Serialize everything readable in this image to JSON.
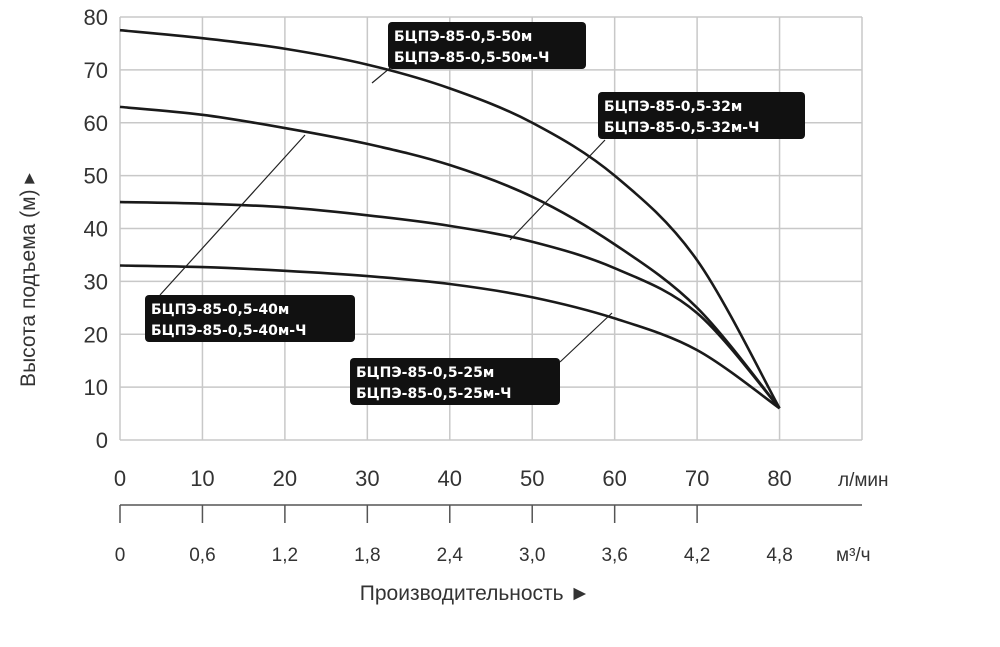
{
  "chart_data": {
    "type": "line",
    "ylabel": "Высота подъема (м) ▸",
    "xlabel": "Производительность ►",
    "x_unit": "л/мин",
    "x2_unit": "м³/ч",
    "xlim": [
      0,
      90
    ],
    "ylim": [
      0,
      80
    ],
    "grid": true,
    "x_ticks": [
      "0",
      "10",
      "20",
      "30",
      "40",
      "50",
      "60",
      "70",
      "80"
    ],
    "x2_ticks": [
      "0",
      "0,6",
      "1,2",
      "1,8",
      "2,4",
      "3,0",
      "3,6",
      "4,2",
      "4,8"
    ],
    "y_ticks": [
      "0",
      "10",
      "20",
      "30",
      "40",
      "50",
      "60",
      "70",
      "80"
    ],
    "x": [
      0,
      10,
      20,
      30,
      40,
      50,
      60,
      70,
      80
    ],
    "series": [
      {
        "name": "БЦПЭ-85-0,5-50м / БЦПЭ-85-0,5-50м-Ч",
        "lines": [
          "БЦПЭ-85-0,5-50м",
          "БЦПЭ-85-0,5-50м-Ч"
        ],
        "values": [
          77.5,
          76,
          74,
          71,
          66.5,
          60,
          50,
          34,
          6
        ]
      },
      {
        "name": "БЦПЭ-85-0,5-40м / БЦПЭ-85-0,5-40м-Ч",
        "lines": [
          "БЦПЭ-85-0,5-40м",
          "БЦПЭ-85-0,5-40м-Ч"
        ],
        "values": [
          63,
          61.5,
          59,
          56,
          52,
          46,
          37,
          25,
          6
        ]
      },
      {
        "name": "БЦПЭ-85-0,5-32м / БЦПЭ-85-0,5-32м-Ч",
        "lines": [
          "БЦПЭ-85-0,5-32м",
          "БЦПЭ-85-0,5-32м-Ч"
        ],
        "values": [
          45,
          44.7,
          44,
          42.5,
          40.5,
          37.5,
          32.5,
          24,
          6
        ]
      },
      {
        "name": "БЦПЭ-85-0,5-25м / БЦПЭ-85-0,5-25м-Ч",
        "lines": [
          "БЦПЭ-85-0,5-25м",
          "БЦПЭ-85-0,5-25м-Ч"
        ],
        "values": [
          33,
          32.7,
          32,
          31,
          29.5,
          27,
          23,
          17,
          6
        ]
      }
    ],
    "colors": {
      "line": "#1a1a1a",
      "grid": "#c8c8c8",
      "label_bg": "#111111",
      "label_text": "#ffffff"
    }
  }
}
